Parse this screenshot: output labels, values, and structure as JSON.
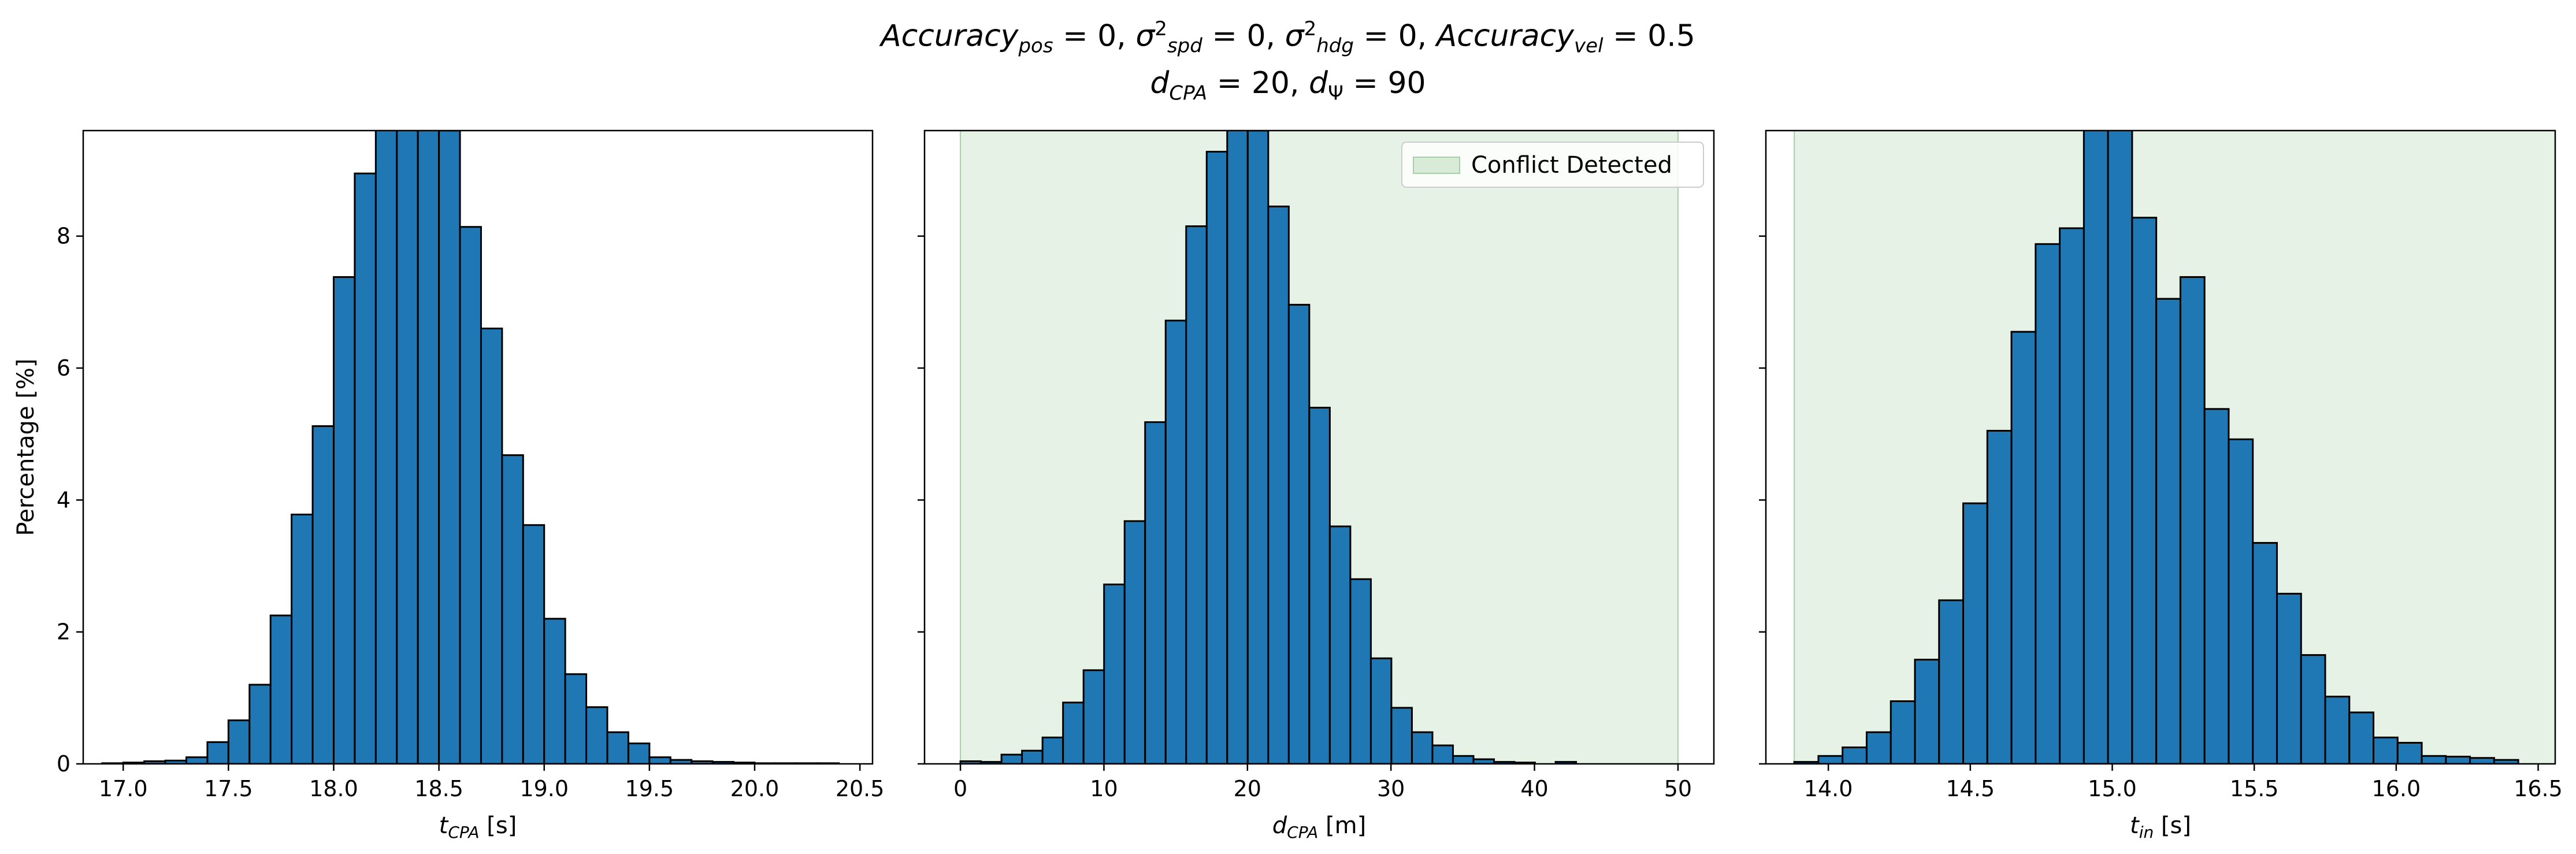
{
  "figure": {
    "title_line1": "Accuracy_pos = 0, σ²_spd = 0, σ²_hdg = 0, Accuracy_vel = 0.5",
    "title_line2": "d_CPA = 20, d_Ψ = 90"
  },
  "colors": {
    "bar": "#1f77b4",
    "edge": "#000000",
    "shade": "#d7ebd7",
    "shade_edge": "#a8d0a8"
  },
  "chart_data": [
    {
      "type": "bar",
      "xlabel": "t_CPA [s]",
      "ylabel": "Percentage [%]",
      "xlim": [
        16.81,
        20.56
      ],
      "ylim": [
        0,
        9.6
      ],
      "xticks": [
        17.0,
        17.5,
        18.0,
        18.5,
        19.0,
        19.5,
        20.0,
        20.5
      ],
      "xtick_labels": [
        "17.0",
        "17.5",
        "18.0",
        "18.5",
        "19.0",
        "19.5",
        "20.0",
        "20.5"
      ],
      "yticks": [
        0,
        2,
        4,
        6,
        8
      ],
      "ytick_labels": [
        "0",
        "2",
        "4",
        "6",
        "8"
      ],
      "bin_edges": [
        16.9,
        17.0,
        17.1,
        17.2,
        17.3,
        17.4,
        17.5,
        17.6,
        17.7,
        17.8,
        17.9,
        18.0,
        18.1,
        18.2,
        18.3,
        18.4,
        18.5,
        18.6,
        18.7,
        18.8,
        18.9,
        19.0,
        19.1,
        19.2,
        19.3,
        19.4,
        19.5,
        19.6,
        19.7,
        19.8,
        19.9,
        20.0,
        20.1,
        20.2,
        20.3,
        20.4
      ],
      "values": [
        0.01,
        0.02,
        0.04,
        0.05,
        0.1,
        0.33,
        0.66,
        1.2,
        2.25,
        3.78,
        5.12,
        7.38,
        8.95,
        9.8,
        10.2,
        10.0,
        9.6,
        8.14,
        6.6,
        4.68,
        3.62,
        2.2,
        1.36,
        0.86,
        0.48,
        0.31,
        0.1,
        0.06,
        0.04,
        0.03,
        0.02,
        0.01,
        0.01,
        0.01,
        0.01
      ],
      "shaded_region": null
    },
    {
      "type": "bar",
      "xlabel": "d_CPA [m]",
      "ylabel": "",
      "xlim": [
        -2.5,
        52.5
      ],
      "ylim": [
        0,
        9.6
      ],
      "xticks": [
        0,
        10,
        20,
        30,
        40,
        50
      ],
      "xtick_labels": [
        "0",
        "10",
        "20",
        "30",
        "40",
        "50"
      ],
      "yticks": [
        0,
        2,
        4,
        6,
        8
      ],
      "ytick_labels": [
        "",
        "",
        "",
        "",
        ""
      ],
      "bin_edges": [
        0.0,
        1.43,
        2.86,
        4.29,
        5.72,
        7.15,
        8.58,
        10.01,
        11.44,
        12.87,
        14.3,
        15.73,
        17.16,
        18.59,
        20.02,
        21.45,
        22.88,
        24.31,
        25.74,
        27.17,
        28.6,
        30.03,
        31.46,
        32.89,
        34.32,
        35.75,
        37.18,
        38.61,
        40.04,
        41.47,
        42.9
      ],
      "values": [
        0.04,
        0.03,
        0.14,
        0.2,
        0.4,
        0.93,
        1.42,
        2.72,
        3.68,
        5.18,
        6.72,
        8.15,
        9.28,
        9.8,
        9.6,
        8.45,
        6.96,
        5.4,
        3.6,
        2.8,
        1.6,
        0.85,
        0.48,
        0.28,
        0.12,
        0.07,
        0.03,
        0.02,
        0.0,
        0.03
      ],
      "shaded_region": {
        "x0": 0.0,
        "x1": 50.0,
        "label": "Conflict Detected"
      }
    },
    {
      "type": "bar",
      "xlabel": "t_in [s]",
      "ylabel": "",
      "xlim": [
        13.78,
        16.56
      ],
      "ylim": [
        0,
        9.6
      ],
      "xticks": [
        14.0,
        14.5,
        15.0,
        15.5,
        16.0,
        16.5
      ],
      "xtick_labels": [
        "14.0",
        "14.5",
        "15.0",
        "15.5",
        "16.0",
        "16.5"
      ],
      "yticks": [
        0,
        2,
        4,
        6,
        8
      ],
      "ytick_labels": [
        "",
        "",
        "",
        "",
        ""
      ],
      "bin_edges": [
        13.88,
        13.965,
        14.05,
        14.135,
        14.22,
        14.305,
        14.39,
        14.475,
        14.56,
        14.645,
        14.73,
        14.815,
        14.9,
        14.985,
        15.07,
        15.155,
        15.24,
        15.325,
        15.41,
        15.495,
        15.58,
        15.665,
        15.75,
        15.835,
        15.92,
        16.005,
        16.09,
        16.175,
        16.26,
        16.345,
        16.43
      ],
      "values": [
        0.03,
        0.12,
        0.25,
        0.48,
        0.95,
        1.58,
        2.48,
        3.95,
        5.05,
        6.55,
        7.88,
        8.12,
        9.8,
        9.62,
        8.28,
        7.05,
        7.38,
        5.38,
        4.92,
        3.35,
        2.58,
        1.65,
        1.02,
        0.78,
        0.4,
        0.32,
        0.12,
        0.11,
        0.09,
        0.06
      ],
      "shaded_region": {
        "x0": 13.88,
        "x1": 16.56,
        "label": ""
      }
    }
  ]
}
